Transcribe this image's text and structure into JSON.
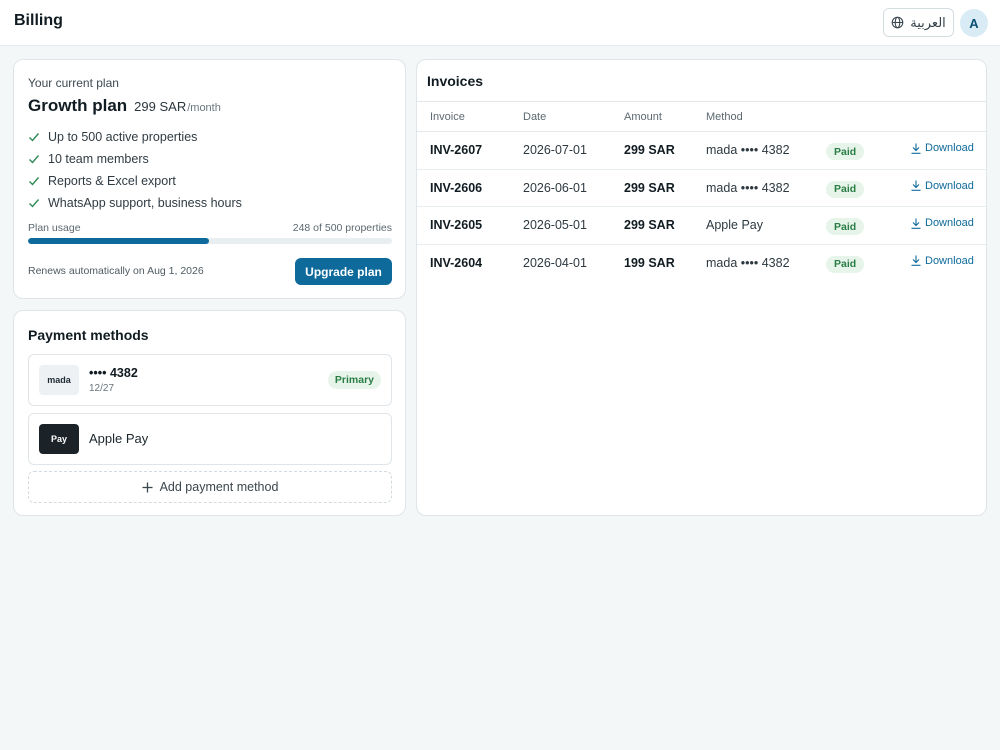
{
  "header": {
    "title": "Billing",
    "language_label": "العربية",
    "language_icon": "globe-icon",
    "avatar_initial": "A"
  },
  "plan": {
    "label": "Your current plan",
    "name": "Growth plan",
    "price": "299 SAR",
    "period": "/month",
    "features": [
      "Up to 500 active properties",
      "10 team members",
      "Reports & Excel export",
      "WhatsApp support, business hours"
    ],
    "usage_label": "Plan usage",
    "usage_text": "248 of 500 properties",
    "usage_fraction": 0.496,
    "renews_text": "Renews automatically on Aug 1, 2026",
    "upgrade_label": "Upgrade plan"
  },
  "payment_methods": {
    "title": "Payment methods",
    "items": [
      {
        "logo": "mada",
        "main": "•••• 4382",
        "sub": "12/27",
        "badge": "Primary"
      },
      {
        "logo": "Pay",
        "main": "Apple Pay"
      }
    ],
    "add_label": "Add payment method"
  },
  "invoices": {
    "title": "Invoices",
    "columns": [
      "Invoice",
      "Date",
      "Amount",
      "Method"
    ],
    "rows": [
      {
        "id": "INV-2607",
        "date": "2026-07-01",
        "amount": "299 SAR",
        "method": "mada •••• 4382",
        "status": "Paid",
        "action": "Download"
      },
      {
        "id": "INV-2606",
        "date": "2026-06-01",
        "amount": "299 SAR",
        "method": "mada •••• 4382",
        "status": "Paid",
        "action": "Download"
      },
      {
        "id": "INV-2605",
        "date": "2026-05-01",
        "amount": "299 SAR",
        "method": "Apple Pay",
        "status": "Paid",
        "action": "Download"
      },
      {
        "id": "INV-2604",
        "date": "2026-04-01",
        "amount": "199 SAR",
        "method": "mada •••• 4382",
        "status": "Paid",
        "action": "Download"
      }
    ]
  },
  "colors": {
    "accent": "#0d6a9a",
    "success_bg": "#e6f4ea",
    "success_text": "#2a7d45"
  }
}
